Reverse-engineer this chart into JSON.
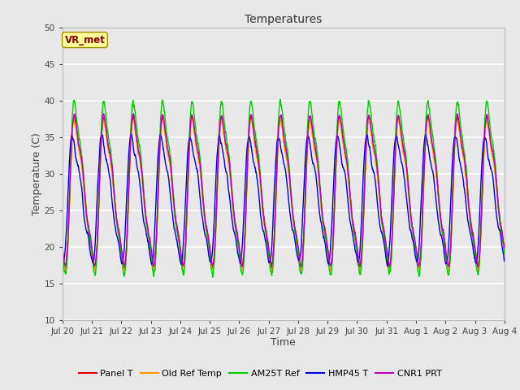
{
  "title": "Temperatures",
  "xlabel": "Time",
  "ylabel": "Temperature (C)",
  "ylim": [
    10,
    50
  ],
  "series": [
    {
      "label": "Panel T",
      "color": "#dd0000",
      "lw": 1.0
    },
    {
      "label": "Old Ref Temp",
      "color": "#ff9900",
      "lw": 1.0
    },
    {
      "label": "AM25T Ref",
      "color": "#00cc00",
      "lw": 1.0
    },
    {
      "label": "HMP45 T",
      "color": "#0000dd",
      "lw": 1.0
    },
    {
      "label": "CNR1 PRT",
      "color": "#bb00bb",
      "lw": 1.0
    }
  ],
  "x_tick_labels": [
    "Jul 20",
    "Jul 21",
    "Jul 22",
    "Jul 23",
    "Jul 24",
    "Jul 25",
    "Jul 26",
    "Jul 27",
    "Jul 28",
    "Jul 29",
    "Jul 30",
    "Jul 31",
    "Aug 1",
    "Aug 2",
    "Aug 3",
    "Aug 4"
  ],
  "bg_color": "#e8e8e8",
  "fig_bg": "#e8e8e8",
  "grid_color": "#ffffff",
  "annotation_text": "VR_met",
  "annotation_color": "#880000",
  "annotation_bg": "#ffff99",
  "annotation_border": "#aa8800",
  "n_points": 2160,
  "n_days": 15,
  "seed": 7
}
